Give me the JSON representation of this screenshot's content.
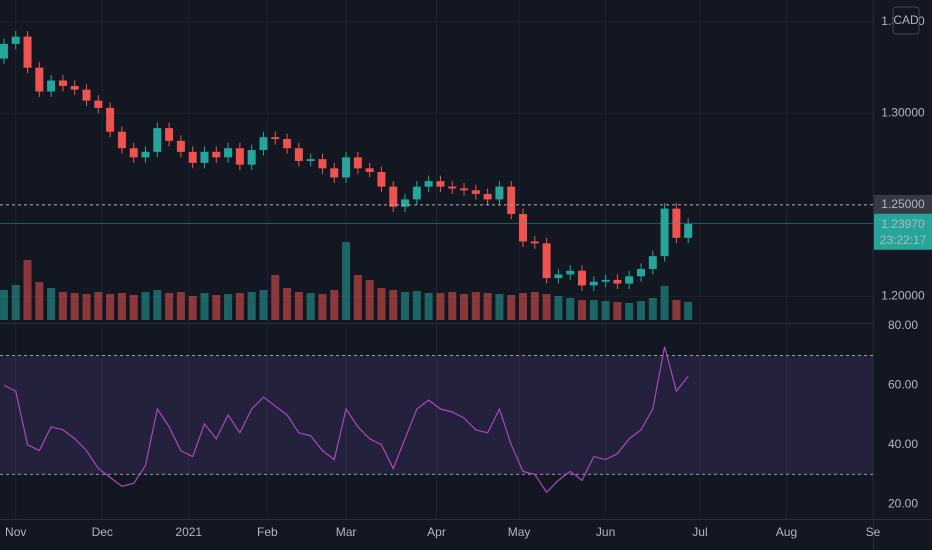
{
  "chart_data": [
    {
      "type": "candlestick",
      "currency": "CAD",
      "x": [
        0,
        3,
        6,
        9,
        12,
        15,
        18,
        21,
        24,
        27,
        30,
        33,
        36,
        39,
        42,
        45,
        48,
        51,
        54,
        57,
        60,
        63,
        66,
        69,
        72,
        75,
        78,
        81,
        84,
        87,
        90,
        93,
        96,
        99,
        102,
        105,
        108,
        111,
        114,
        117,
        120,
        123,
        126,
        129,
        132,
        135,
        138,
        141,
        144,
        147,
        150,
        153,
        156,
        159,
        162,
        165,
        168,
        171,
        174
      ],
      "open": [
        1.33,
        1.338,
        1.342,
        1.325,
        1.312,
        1.318,
        1.315,
        1.313,
        1.307,
        1.303,
        1.29,
        1.281,
        1.276,
        1.279,
        1.292,
        1.285,
        1.279,
        1.273,
        1.279,
        1.276,
        1.281,
        1.272,
        1.28,
        1.287,
        1.286,
        1.281,
        1.274,
        1.275,
        1.27,
        1.265,
        1.276,
        1.27,
        1.268,
        1.26,
        1.249,
        1.253,
        1.26,
        1.263,
        1.26,
        1.259,
        1.258,
        1.256,
        1.253,
        1.26,
        1.245,
        1.23,
        1.229,
        1.21,
        1.212,
        1.214,
        1.206,
        1.208,
        1.209,
        1.207,
        1.211,
        1.215,
        1.222,
        1.248,
        1.232
      ],
      "high": [
        1.341,
        1.345,
        1.345,
        1.328,
        1.321,
        1.321,
        1.318,
        1.316,
        1.31,
        1.306,
        1.293,
        1.284,
        1.282,
        1.295,
        1.295,
        1.288,
        1.282,
        1.282,
        1.282,
        1.284,
        1.284,
        1.283,
        1.29,
        1.29,
        1.289,
        1.284,
        1.278,
        1.278,
        1.273,
        1.279,
        1.279,
        1.273,
        1.271,
        1.263,
        1.256,
        1.263,
        1.266,
        1.266,
        1.263,
        1.262,
        1.261,
        1.259,
        1.263,
        1.263,
        1.248,
        1.233,
        1.232,
        1.215,
        1.217,
        1.217,
        1.211,
        1.212,
        1.212,
        1.214,
        1.218,
        1.225,
        1.251,
        1.251,
        1.2427
      ],
      "low": [
        1.327,
        1.335,
        1.322,
        1.309,
        1.309,
        1.312,
        1.31,
        1.304,
        1.3,
        1.287,
        1.278,
        1.273,
        1.273,
        1.276,
        1.282,
        1.276,
        1.27,
        1.27,
        1.273,
        1.273,
        1.269,
        1.269,
        1.277,
        1.283,
        1.278,
        1.271,
        1.271,
        1.267,
        1.262,
        1.262,
        1.267,
        1.265,
        1.257,
        1.246,
        1.246,
        1.25,
        1.257,
        1.257,
        1.256,
        1.255,
        1.253,
        1.25,
        1.25,
        1.242,
        1.227,
        1.226,
        1.207,
        1.207,
        1.209,
        1.203,
        1.203,
        1.205,
        1.204,
        1.204,
        1.208,
        1.212,
        1.219,
        1.229,
        1.229
      ],
      "close": [
        1.338,
        1.342,
        1.325,
        1.312,
        1.318,
        1.315,
        1.313,
        1.307,
        1.303,
        1.29,
        1.281,
        1.276,
        1.279,
        1.292,
        1.285,
        1.279,
        1.273,
        1.279,
        1.276,
        1.281,
        1.272,
        1.28,
        1.287,
        1.286,
        1.281,
        1.274,
        1.275,
        1.27,
        1.265,
        1.276,
        1.27,
        1.268,
        1.26,
        1.249,
        1.253,
        1.26,
        1.263,
        1.26,
        1.259,
        1.258,
        1.256,
        1.253,
        1.26,
        1.245,
        1.23,
        1.229,
        1.21,
        1.212,
        1.214,
        1.206,
        1.208,
        1.209,
        1.207,
        1.211,
        1.215,
        1.222,
        1.248,
        1.232,
        1.2397
      ],
      "volume": [
        30,
        35,
        60,
        38,
        32,
        28,
        27,
        26,
        28,
        26,
        27,
        25,
        28,
        30,
        27,
        28,
        24,
        27,
        25,
        26,
        27,
        28,
        30,
        45,
        32,
        28,
        27,
        26,
        30,
        78,
        45,
        40,
        32,
        30,
        28,
        29,
        27,
        27,
        28,
        26,
        28,
        27,
        26,
        25,
        27,
        28,
        26,
        24,
        22,
        20,
        20,
        19,
        18,
        17,
        19,
        22,
        34,
        20,
        18
      ],
      "volume_lim": [
        0,
        100
      ],
      "up_color": "#26a69a",
      "down_color": "#ef5350",
      "xlim": [
        -1,
        221
      ],
      "xticks": [
        {
          "value": 3,
          "label": "Nov"
        },
        {
          "value": 25,
          "label": "Dec"
        },
        {
          "value": 47,
          "label": "2021"
        },
        {
          "value": 67,
          "label": "Feb"
        },
        {
          "value": 87,
          "label": "Mar"
        },
        {
          "value": 110,
          "label": "Apr"
        },
        {
          "value": 131,
          "label": "May"
        },
        {
          "value": 153,
          "label": "Jun"
        },
        {
          "value": 177,
          "label": "Jul"
        },
        {
          "value": 199,
          "label": "Aug"
        },
        {
          "value": 221,
          "label": "Se"
        }
      ],
      "ylim": [
        1.186,
        1.362
      ],
      "yticks": [
        {
          "value": 1.35,
          "label": "1.35000"
        },
        {
          "value": 1.3,
          "label": "1.30000"
        },
        {
          "value": 1.2,
          "label": "1.20000"
        }
      ],
      "horizontal_line": {
        "value": 1.25,
        "label": "1.25000"
      },
      "last_price": {
        "value": 1.2397,
        "label": "1.23970",
        "countdown": "23:22:17"
      },
      "grid": true
    },
    {
      "type": "line",
      "color": "#ab47bc",
      "values": [
        60,
        58,
        40,
        38,
        46,
        45,
        42,
        38,
        32,
        29,
        26,
        27,
        33,
        52,
        46,
        38,
        36,
        47,
        42,
        50,
        44,
        52,
        56,
        53,
        50,
        44,
        43,
        38,
        35,
        52,
        46,
        42,
        40,
        32,
        42,
        52,
        55,
        52,
        51,
        49,
        45,
        44,
        52,
        40,
        31,
        30,
        24,
        28,
        31,
        28,
        36,
        35,
        37,
        42,
        45,
        52,
        73,
        58,
        63
      ],
      "ylim": [
        15,
        80.6
      ],
      "yticks": [
        {
          "value": 80,
          "label": "80.00"
        },
        {
          "value": 60,
          "label": "60.00"
        },
        {
          "value": 40,
          "label": "40.00"
        },
        {
          "value": 20,
          "label": "20.00"
        }
      ],
      "bands": [
        30,
        70
      ]
    }
  ]
}
